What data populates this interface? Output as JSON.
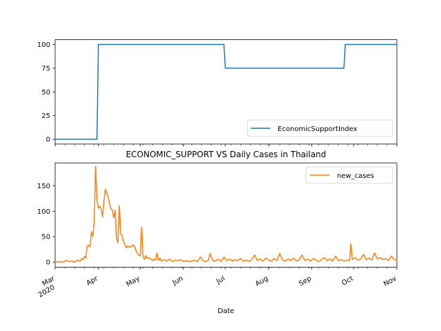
{
  "chart_data": [
    {
      "type": "line",
      "title": "",
      "xlabel": "",
      "ylabel": "",
      "ylim": [
        -5,
        105
      ],
      "yticks": [
        0,
        25,
        50,
        75,
        100
      ],
      "x_range": [
        "2020-03-01",
        "2020-11-01"
      ],
      "legend": {
        "position": "lower-right"
      },
      "series": [
        {
          "name": "EconomicSupportIndex",
          "color": "#1f77b4",
          "steps": [
            {
              "x": "2020-03-01",
              "y": 0
            },
            {
              "x": "2020-03-31",
              "y": 0
            },
            {
              "x": "2020-04-01",
              "y": 100
            },
            {
              "x": "2020-06-30",
              "y": 100
            },
            {
              "x": "2020-07-01",
              "y": 75
            },
            {
              "x": "2020-09-24",
              "y": 75
            },
            {
              "x": "2020-09-25",
              "y": 100
            },
            {
              "x": "2020-11-01",
              "y": 100
            }
          ]
        }
      ]
    },
    {
      "type": "line",
      "title": "ECONOMIC_SUPPORT VS Daily Cases in Thailand",
      "xlabel": "Date",
      "ylabel": "",
      "ylim": [
        -10,
        195
      ],
      "yticks": [
        0,
        50,
        100,
        150
      ],
      "x_range": [
        "2020-03-01",
        "2020-11-01"
      ],
      "x_ticks": [
        {
          "date": "2020-03-01",
          "label": "Mar",
          "sublabel": "2020"
        },
        {
          "date": "2020-04-01",
          "label": "Apr"
        },
        {
          "date": "2020-05-01",
          "label": "May"
        },
        {
          "date": "2020-06-01",
          "label": "Jun"
        },
        {
          "date": "2020-07-01",
          "label": "Jul"
        },
        {
          "date": "2020-08-01",
          "label": "Aug"
        },
        {
          "date": "2020-09-01",
          "label": "Sep"
        },
        {
          "date": "2020-10-01",
          "label": "Oct"
        },
        {
          "date": "2020-11-01",
          "label": "Nov"
        }
      ],
      "legend": {
        "position": "upper-right"
      },
      "series": [
        {
          "name": "new_cases",
          "color": "#ff7f0e",
          "points": [
            [
              "2020-03-01",
              1
            ],
            [
              "2020-03-03",
              0
            ],
            [
              "2020-03-05",
              1
            ],
            [
              "2020-03-07",
              0
            ],
            [
              "2020-03-09",
              4
            ],
            [
              "2020-03-11",
              1
            ],
            [
              "2020-03-13",
              2
            ],
            [
              "2020-03-15",
              0
            ],
            [
              "2020-03-17",
              4
            ],
            [
              "2020-03-19",
              2
            ],
            [
              "2020-03-20",
              7
            ],
            [
              "2020-03-21",
              5
            ],
            [
              "2020-03-22",
              11
            ],
            [
              "2020-03-23",
              8
            ],
            [
              "2020-03-24",
              32
            ],
            [
              "2020-03-25",
              33
            ],
            [
              "2020-03-26",
              30
            ],
            [
              "2020-03-27",
              60
            ],
            [
              "2020-03-28",
              50
            ],
            [
              "2020-03-29",
              80
            ],
            [
              "2020-03-30",
              188
            ],
            [
              "2020-03-31",
              122
            ],
            [
              "2020-04-01",
              106
            ],
            [
              "2020-04-02",
              110
            ],
            [
              "2020-04-03",
              104
            ],
            [
              "2020-04-04",
              89
            ],
            [
              "2020-04-05",
              120
            ],
            [
              "2020-04-06",
              143
            ],
            [
              "2020-04-07",
              136
            ],
            [
              "2020-04-08",
              128
            ],
            [
              "2020-04-09",
              115
            ],
            [
              "2020-04-10",
              104
            ],
            [
              "2020-04-11",
              103
            ],
            [
              "2020-04-12",
              87
            ],
            [
              "2020-04-13",
              102
            ],
            [
              "2020-04-14",
              48
            ],
            [
              "2020-04-15",
              38
            ],
            [
              "2020-04-16",
              111
            ],
            [
              "2020-04-17",
              55
            ],
            [
              "2020-04-18",
              52
            ],
            [
              "2020-04-19",
              40
            ],
            [
              "2020-04-20",
              34
            ],
            [
              "2020-04-21",
              28
            ],
            [
              "2020-04-22",
              32
            ],
            [
              "2020-04-23",
              30
            ],
            [
              "2020-04-24",
              29
            ],
            [
              "2020-04-25",
              32
            ],
            [
              "2020-04-26",
              34
            ],
            [
              "2020-04-27",
              30
            ],
            [
              "2020-04-28",
              22
            ],
            [
              "2020-04-29",
              17
            ],
            [
              "2020-04-30",
              14
            ],
            [
              "2020-05-01",
              12
            ],
            [
              "2020-05-02",
              69
            ],
            [
              "2020-05-03",
              11
            ],
            [
              "2020-05-04",
              5
            ],
            [
              "2020-05-05",
              13
            ],
            [
              "2020-05-06",
              7
            ],
            [
              "2020-05-07",
              9
            ],
            [
              "2020-05-08",
              7
            ],
            [
              "2020-05-09",
              5
            ],
            [
              "2020-05-10",
              3
            ],
            [
              "2020-05-11",
              6
            ],
            [
              "2020-05-12",
              4
            ],
            [
              "2020-05-13",
              18
            ],
            [
              "2020-05-14",
              3
            ],
            [
              "2020-05-15",
              8
            ],
            [
              "2020-05-16",
              2
            ],
            [
              "2020-05-18",
              5
            ],
            [
              "2020-05-20",
              2
            ],
            [
              "2020-05-22",
              6
            ],
            [
              "2020-05-24",
              1
            ],
            [
              "2020-05-26",
              4
            ],
            [
              "2020-05-28",
              3
            ],
            [
              "2020-05-30",
              5
            ],
            [
              "2020-06-01",
              1
            ],
            [
              "2020-06-03",
              3
            ],
            [
              "2020-06-05",
              1
            ],
            [
              "2020-06-07",
              2
            ],
            [
              "2020-06-09",
              4
            ],
            [
              "2020-06-11",
              1
            ],
            [
              "2020-06-13",
              10
            ],
            [
              "2020-06-15",
              3
            ],
            [
              "2020-06-17",
              1
            ],
            [
              "2020-06-19",
              4
            ],
            [
              "2020-06-20",
              17
            ],
            [
              "2020-06-22",
              3
            ],
            [
              "2020-06-24",
              2
            ],
            [
              "2020-06-26",
              6
            ],
            [
              "2020-06-28",
              1
            ],
            [
              "2020-06-30",
              10
            ],
            [
              "2020-07-02",
              3
            ],
            [
              "2020-07-04",
              6
            ],
            [
              "2020-07-06",
              2
            ],
            [
              "2020-07-08",
              5
            ],
            [
              "2020-07-10",
              3
            ],
            [
              "2020-07-12",
              7
            ],
            [
              "2020-07-14",
              2
            ],
            [
              "2020-07-16",
              4
            ],
            [
              "2020-07-18",
              1
            ],
            [
              "2020-07-20",
              5
            ],
            [
              "2020-07-22",
              14
            ],
            [
              "2020-07-24",
              3
            ],
            [
              "2020-07-26",
              6
            ],
            [
              "2020-07-28",
              2
            ],
            [
              "2020-07-30",
              8
            ],
            [
              "2020-08-01",
              4
            ],
            [
              "2020-08-03",
              2
            ],
            [
              "2020-08-05",
              7
            ],
            [
              "2020-08-07",
              3
            ],
            [
              "2020-08-09",
              17
            ],
            [
              "2020-08-11",
              4
            ],
            [
              "2020-08-13",
              2
            ],
            [
              "2020-08-15",
              6
            ],
            [
              "2020-08-17",
              3
            ],
            [
              "2020-08-19",
              8
            ],
            [
              "2020-08-21",
              2
            ],
            [
              "2020-08-23",
              5
            ],
            [
              "2020-08-25",
              14
            ],
            [
              "2020-08-27",
              3
            ],
            [
              "2020-08-29",
              6
            ],
            [
              "2020-08-31",
              2
            ],
            [
              "2020-09-02",
              7
            ],
            [
              "2020-09-04",
              4
            ],
            [
              "2020-09-06",
              1
            ],
            [
              "2020-09-08",
              5
            ],
            [
              "2020-09-10",
              9
            ],
            [
              "2020-09-12",
              3
            ],
            [
              "2020-09-14",
              6
            ],
            [
              "2020-09-16",
              2
            ],
            [
              "2020-09-18",
              12
            ],
            [
              "2020-09-20",
              3
            ],
            [
              "2020-09-22",
              5
            ],
            [
              "2020-09-24",
              2
            ],
            [
              "2020-09-26",
              4
            ],
            [
              "2020-09-28",
              3
            ],
            [
              "2020-09-29",
              36
            ],
            [
              "2020-09-30",
              5
            ],
            [
              "2020-10-02",
              9
            ],
            [
              "2020-10-04",
              4
            ],
            [
              "2020-10-06",
              6
            ],
            [
              "2020-10-08",
              15
            ],
            [
              "2020-10-10",
              5
            ],
            [
              "2020-10-12",
              8
            ],
            [
              "2020-10-14",
              4
            ],
            [
              "2020-10-16",
              18
            ],
            [
              "2020-10-18",
              6
            ],
            [
              "2020-10-20",
              9
            ],
            [
              "2020-10-22",
              5
            ],
            [
              "2020-10-24",
              7
            ],
            [
              "2020-10-26",
              3
            ],
            [
              "2020-10-28",
              12
            ],
            [
              "2020-10-30",
              5
            ],
            [
              "2020-11-01",
              4
            ]
          ]
        }
      ]
    }
  ]
}
